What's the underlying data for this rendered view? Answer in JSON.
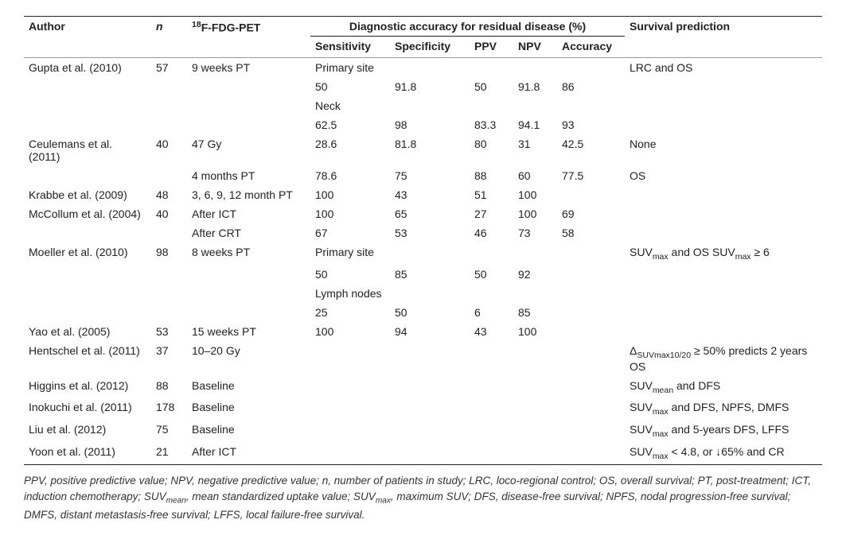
{
  "headers": {
    "author": "Author",
    "n": "n",
    "pet_prefix_sup": "18",
    "pet": "F-FDG-PET",
    "group": "Diagnostic accuracy for residual disease (%)",
    "sens": "Sensitivity",
    "spec": "Specificity",
    "ppv": "PPV",
    "npv": "NPV",
    "acc": "Accuracy",
    "surv": "Survival prediction"
  },
  "rows": [
    {
      "author": "Gupta et al. (2010)",
      "n": "57",
      "pet": "9 weeks PT",
      "sens": "Primary site",
      "spec": "",
      "ppv": "",
      "npv": "",
      "acc": "",
      "surv": "LRC and OS"
    },
    {
      "author": "",
      "n": "",
      "pet": "",
      "sens": "50",
      "spec": "91.8",
      "ppv": "50",
      "npv": "91.8",
      "acc": "86",
      "surv": ""
    },
    {
      "author": "",
      "n": "",
      "pet": "",
      "sens": "Neck",
      "spec": "",
      "ppv": "",
      "npv": "",
      "acc": "",
      "surv": ""
    },
    {
      "author": "",
      "n": "",
      "pet": "",
      "sens": "62.5",
      "spec": "98",
      "ppv": "83.3",
      "npv": "94.1",
      "acc": "93",
      "surv": ""
    },
    {
      "author": "Ceulemans et al. (2011)",
      "n": "40",
      "pet": "47 Gy",
      "sens": "28.6",
      "spec": "81.8",
      "ppv": "80",
      "npv": "31",
      "acc": "42.5",
      "surv": "None"
    },
    {
      "author": "",
      "n": "",
      "pet": "4 months PT",
      "sens": "78.6",
      "spec": "75",
      "ppv": "88",
      "npv": "60",
      "acc": "77.5",
      "surv": "OS"
    },
    {
      "author": "Krabbe et al. (2009)",
      "n": "48",
      "pet": "3, 6, 9, 12 month PT",
      "sens": "100",
      "spec": "43",
      "ppv": "51",
      "npv": "100",
      "acc": "",
      "surv": ""
    },
    {
      "author": "McCollum et al. (2004)",
      "n": "40",
      "pet": "After ICT",
      "sens": "100",
      "spec": "65",
      "ppv": "27",
      "npv": "100",
      "acc": "69",
      "surv": ""
    },
    {
      "author": "",
      "n": "",
      "pet": "After CRT",
      "sens": "67",
      "spec": "53",
      "ppv": "46",
      "npv": "73",
      "acc": "58",
      "surv": ""
    },
    {
      "author": "Moeller et al. (2010)",
      "n": "98",
      "pet": "8 weeks PT",
      "sens": "Primary site",
      "spec": "",
      "ppv": "",
      "npv": "",
      "acc": "",
      "surv": "__MOELLER__"
    },
    {
      "author": "",
      "n": "",
      "pet": "",
      "sens": "50",
      "spec": "85",
      "ppv": "50",
      "npv": "92",
      "acc": "",
      "surv": ""
    },
    {
      "author": "",
      "n": "",
      "pet": "",
      "sens": "Lymph nodes",
      "spec": "",
      "ppv": "",
      "npv": "",
      "acc": "",
      "surv": ""
    },
    {
      "author": "",
      "n": "",
      "pet": "",
      "sens": "25",
      "spec": "50",
      "ppv": "6",
      "npv": "85",
      "acc": "",
      "surv": ""
    },
    {
      "author": "Yao et al. (2005)",
      "n": "53",
      "pet": "15 weeks PT",
      "sens": "100",
      "spec": "94",
      "ppv": "43",
      "npv": "100",
      "acc": "",
      "surv": ""
    },
    {
      "author": "Hentschel et al. (2011)",
      "n": "37",
      "pet": "10–20 Gy",
      "sens": "",
      "spec": "",
      "ppv": "",
      "npv": "",
      "acc": "",
      "surv": "__HENTSCHEL__"
    },
    {
      "author": "Higgins et al. (2012)",
      "n": "88",
      "pet": "Baseline",
      "sens": "",
      "spec": "",
      "ppv": "",
      "npv": "",
      "acc": "",
      "surv": "__HIGGINS__"
    },
    {
      "author": "Inokuchi et al. (2011)",
      "n": "178",
      "pet": "Baseline",
      "sens": "",
      "spec": "",
      "ppv": "",
      "npv": "",
      "acc": "",
      "surv": "__INOKUCHI__"
    },
    {
      "author": "Liu et al. (2012)",
      "n": "75",
      "pet": "Baseline",
      "sens": "",
      "spec": "",
      "ppv": "",
      "npv": "",
      "acc": "",
      "surv": "__LIU__"
    },
    {
      "author": "Yoon et al. (2011)",
      "n": "21",
      "pet": "After ICT",
      "sens": "",
      "spec": "",
      "ppv": "",
      "npv": "",
      "acc": "",
      "surv": "__YOON__"
    }
  ],
  "surv_html": {
    "__MOELLER__": "SUV<sub>max</sub> and OS SUV<sub>max</sub> ≥ 6",
    "__HENTSCHEL__": "Δ<sub>SUVmax10/20</sub> ≥ 50% predicts 2 years OS",
    "__HIGGINS__": "SUV<sub>mean</sub> and DFS",
    "__INOKUCHI__": "SUV<sub>max</sub> and DFS, NPFS, DMFS",
    "__LIU__": "SUV<sub>max</sub> and 5-years DFS, LFFS",
    "__YOON__": "SUV<sub>max</sub> < 4.8, or ↓65% and CR"
  },
  "footnote": "PPV, positive predictive value; NPV, negative predictive value; n, number of patients in study; LRC, loco-regional control; OS, overall survival; PT, post-treatment; ICT, induction chemotherapy; SUV<sub>mean</sub>, mean standardized uptake value; SUV<sub>max</sub>, maximum SUV; DFS, disease-free survival; NPFS, nodal progression-free survival; DMFS, distant metastasis-free survival; LFFS, local failure-free survival."
}
